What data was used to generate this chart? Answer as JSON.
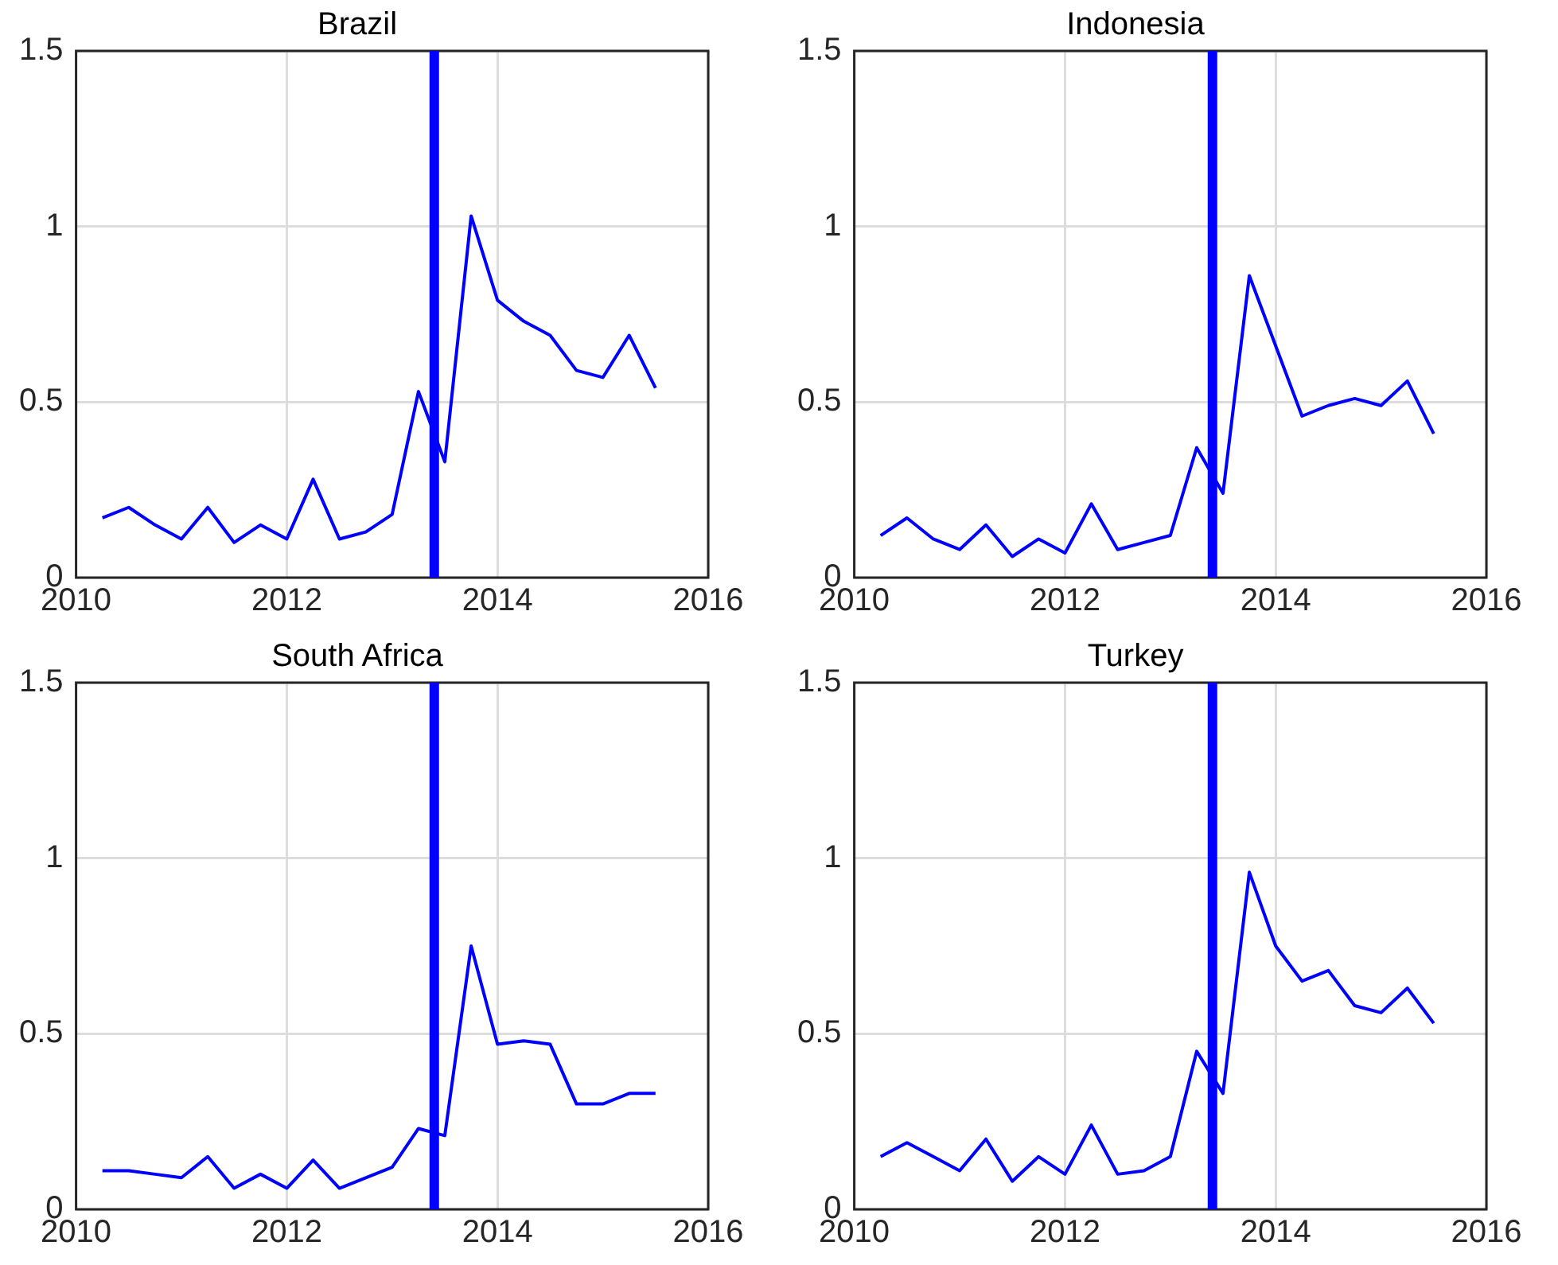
{
  "chart_data": [
    {
      "type": "line",
      "title": "Brazil",
      "x": [
        2010.25,
        2010.5,
        2010.75,
        2011,
        2011.25,
        2011.5,
        2011.75,
        2012,
        2012.25,
        2012.5,
        2012.75,
        2013,
        2013.25,
        2013.5,
        2013.75,
        2014,
        2014.25,
        2014.5,
        2014.75,
        2015,
        2015.25,
        2015.5
      ],
      "series": [
        {
          "color": "#0000ff",
          "values": [
            0.17,
            0.2,
            0.15,
            0.11,
            0.2,
            0.1,
            0.15,
            0.11,
            0.28,
            0.11,
            0.13,
            0.18,
            0.53,
            0.33,
            1.03,
            0.79,
            0.73,
            0.69,
            0.59,
            0.57,
            0.69,
            0.54
          ]
        }
      ],
      "xlim": [
        2010,
        2016
      ],
      "xticks": [
        2010,
        2012,
        2014,
        2016
      ],
      "ylim": [
        0,
        1.5
      ],
      "yticks": [
        0,
        0.5,
        1,
        1.5
      ],
      "grid": true,
      "legend": false,
      "marker": "none",
      "line_style": "solid",
      "ref_lines": [
        {
          "axis": "x",
          "value": 2013.4,
          "color": "#0000ff"
        }
      ]
    },
    {
      "type": "line",
      "title": "Indonesia",
      "x": [
        2010.25,
        2010.5,
        2010.75,
        2011,
        2011.25,
        2011.5,
        2011.75,
        2012,
        2012.25,
        2012.5,
        2012.75,
        2013,
        2013.25,
        2013.5,
        2013.75,
        2014,
        2014.25,
        2014.5,
        2014.75,
        2015,
        2015.25,
        2015.5
      ],
      "series": [
        {
          "color": "#0000ff",
          "values": [
            0.12,
            0.17,
            0.11,
            0.08,
            0.15,
            0.06,
            0.11,
            0.07,
            0.21,
            0.08,
            0.1,
            0.12,
            0.37,
            0.24,
            0.86,
            0.66,
            0.46,
            0.49,
            0.51,
            0.49,
            0.56,
            0.41
          ]
        }
      ],
      "xlim": [
        2010,
        2016
      ],
      "xticks": [
        2010,
        2012,
        2014,
        2016
      ],
      "ylim": [
        0,
        1.5
      ],
      "yticks": [
        0,
        0.5,
        1,
        1.5
      ],
      "grid": true,
      "legend": false,
      "marker": "none",
      "line_style": "solid",
      "ref_lines": [
        {
          "axis": "x",
          "value": 2013.4,
          "color": "#0000ff"
        }
      ]
    },
    {
      "type": "line",
      "title": "South Africa",
      "x": [
        2010.25,
        2010.5,
        2010.75,
        2011,
        2011.25,
        2011.5,
        2011.75,
        2012,
        2012.25,
        2012.5,
        2012.75,
        2013,
        2013.25,
        2013.5,
        2013.75,
        2014,
        2014.25,
        2014.5,
        2014.75,
        2015,
        2015.25,
        2015.5
      ],
      "series": [
        {
          "color": "#0000ff",
          "values": [
            0.11,
            0.11,
            0.1,
            0.09,
            0.15,
            0.06,
            0.1,
            0.06,
            0.14,
            0.06,
            0.09,
            0.12,
            0.23,
            0.21,
            0.75,
            0.47,
            0.48,
            0.47,
            0.3,
            0.3,
            0.33,
            0.33
          ]
        }
      ],
      "xlim": [
        2010,
        2016
      ],
      "xticks": [
        2010,
        2012,
        2014,
        2016
      ],
      "ylim": [
        0,
        1.5
      ],
      "yticks": [
        0,
        0.5,
        1,
        1.5
      ],
      "grid": true,
      "legend": false,
      "marker": "none",
      "line_style": "solid",
      "ref_lines": [
        {
          "axis": "x",
          "value": 2013.4,
          "color": "#0000ff"
        }
      ]
    },
    {
      "type": "line",
      "title": "Turkey",
      "x": [
        2010.25,
        2010.5,
        2010.75,
        2011,
        2011.25,
        2011.5,
        2011.75,
        2012,
        2012.25,
        2012.5,
        2012.75,
        2013,
        2013.25,
        2013.5,
        2013.75,
        2014,
        2014.25,
        2014.5,
        2014.75,
        2015,
        2015.25,
        2015.5
      ],
      "series": [
        {
          "color": "#0000ff",
          "values": [
            0.15,
            0.19,
            0.15,
            0.11,
            0.2,
            0.08,
            0.15,
            0.1,
            0.24,
            0.1,
            0.11,
            0.15,
            0.45,
            0.33,
            0.96,
            0.75,
            0.65,
            0.68,
            0.58,
            0.56,
            0.63,
            0.53
          ]
        }
      ],
      "xlim": [
        2010,
        2016
      ],
      "xticks": [
        2010,
        2012,
        2014,
        2016
      ],
      "ylim": [
        0,
        1.5
      ],
      "yticks": [
        0,
        0.5,
        1,
        1.5
      ],
      "grid": true,
      "legend": false,
      "marker": "none",
      "line_style": "solid",
      "ref_lines": [
        {
          "axis": "x",
          "value": 2013.4,
          "color": "#0000ff"
        }
      ]
    }
  ]
}
